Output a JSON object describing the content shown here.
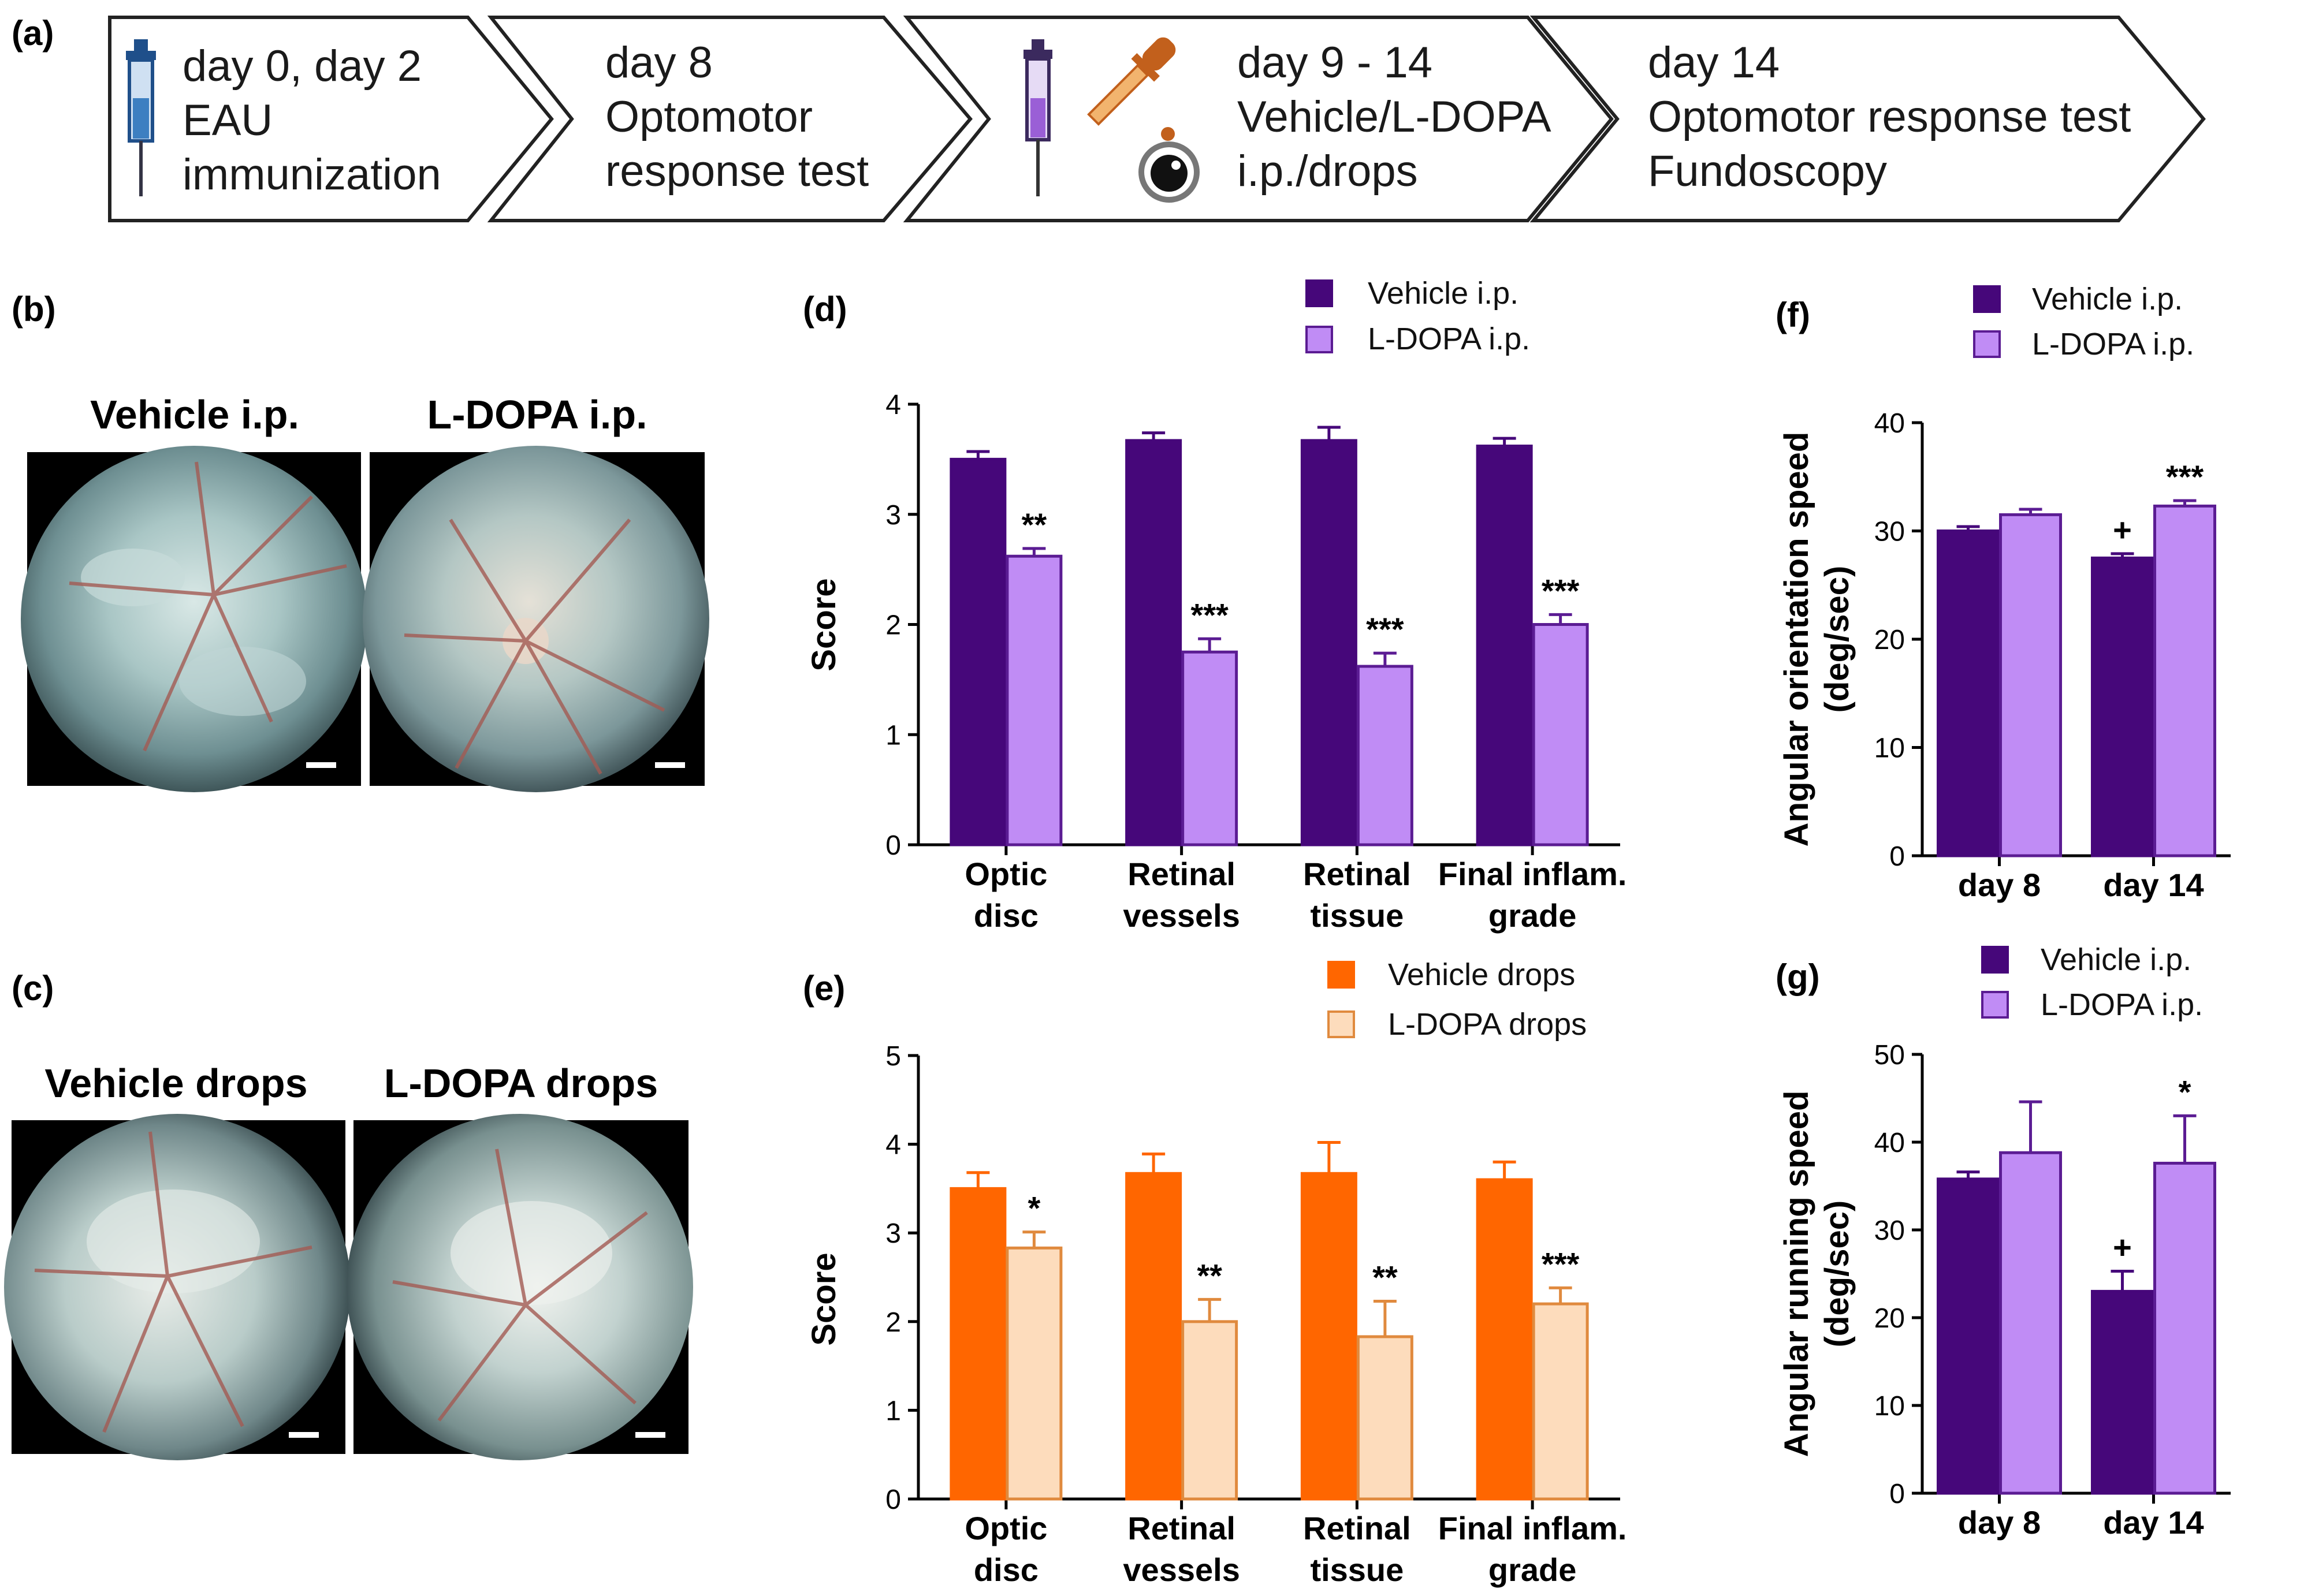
{
  "colors": {
    "vehicle_ip": "#46077a",
    "ldopa_ip_fill": "#c08cf5",
    "ldopa_ip_edge": "#5b1c93",
    "vehicle_drops": "#ff6600",
    "ldopa_drops_fill": "#fddcbc",
    "ldopa_drops_edge": "#e08a3e"
  },
  "panel_a": {
    "label": "(a)",
    "steps": [
      {
        "lines": [
          "day 0, day 2",
          "EAU",
          "immunization"
        ],
        "icon": "syringe-icon"
      },
      {
        "lines": [
          "day 8",
          "Optomotor",
          "response test"
        ],
        "icon": ""
      },
      {
        "lines": [
          "day 9 - 14",
          "Vehicle/L-DOPA",
          "i.p./drops"
        ],
        "icon": "syringe-dropper-icon"
      },
      {
        "lines": [
          "day 14",
          "Optomotor response test",
          "Fundoscopy"
        ],
        "icon": ""
      }
    ]
  },
  "panel_b": {
    "label": "(b)",
    "left_title": "Vehicle i.p.",
    "right_title": "L-DOPA i.p."
  },
  "panel_c": {
    "label": "(c)",
    "left_title": "Vehicle drops",
    "right_title": "L-DOPA drops"
  },
  "chart_data": [
    {
      "id": "d",
      "panel_label": "(d)",
      "type": "bar",
      "title": "",
      "xlabel": "",
      "ylabel": "Score",
      "ylim": [
        0,
        4
      ],
      "yticks": [
        0,
        1,
        2,
        3,
        4
      ],
      "categories": [
        [
          "Optic",
          "disc"
        ],
        [
          "Retinal",
          "vessels"
        ],
        [
          "Retinal",
          "tissue"
        ],
        [
          "Final inflam.",
          "grade"
        ]
      ],
      "series": [
        {
          "name": "Vehicle i.p.",
          "values": [
            3.5,
            3.67,
            3.67,
            3.62
          ],
          "errors": [
            0.07,
            0.07,
            0.12,
            0.07
          ],
          "fill": "#46077a",
          "edge": "#46077a"
        },
        {
          "name": "L-DOPA i.p.",
          "values": [
            2.62,
            1.75,
            1.62,
            2.0
          ],
          "errors": [
            0.07,
            0.12,
            0.12,
            0.09
          ],
          "fill": "#c08cf5",
          "edge": "#5b1c93"
        }
      ],
      "annotations": [
        {
          "category": 0,
          "series": 1,
          "text": "**",
          "kind": "star"
        },
        {
          "category": 1,
          "series": 1,
          "text": "***",
          "kind": "star"
        },
        {
          "category": 2,
          "series": 1,
          "text": "***",
          "kind": "star"
        },
        {
          "category": 3,
          "series": 1,
          "text": "***",
          "kind": "star"
        }
      ],
      "legend_position": "top"
    },
    {
      "id": "e",
      "panel_label": "(e)",
      "type": "bar",
      "title": "",
      "xlabel": "",
      "ylabel": "Score",
      "ylim": [
        0,
        5
      ],
      "yticks": [
        0,
        1,
        2,
        3,
        4,
        5
      ],
      "categories": [
        [
          "Optic",
          "disc"
        ],
        [
          "Retinal",
          "vessels"
        ],
        [
          "Retinal",
          "tissue"
        ],
        [
          "Final inflam.",
          "grade"
        ]
      ],
      "series": [
        {
          "name": "Vehicle drops",
          "values": [
            3.5,
            3.67,
            3.67,
            3.6
          ],
          "errors": [
            0.18,
            0.22,
            0.35,
            0.2
          ],
          "fill": "#ff6600",
          "edge": "#ff6600"
        },
        {
          "name": "L-DOPA drops",
          "values": [
            2.83,
            2.0,
            1.83,
            2.2
          ],
          "errors": [
            0.18,
            0.25,
            0.4,
            0.18
          ],
          "fill": "#fddcbc",
          "edge": "#e08a3e"
        }
      ],
      "annotations": [
        {
          "category": 0,
          "series": 1,
          "text": "*",
          "kind": "star"
        },
        {
          "category": 1,
          "series": 1,
          "text": "**",
          "kind": "star"
        },
        {
          "category": 2,
          "series": 1,
          "text": "**",
          "kind": "star"
        },
        {
          "category": 3,
          "series": 1,
          "text": "***",
          "kind": "star"
        }
      ],
      "legend_position": "top"
    },
    {
      "id": "f",
      "panel_label": "(f)",
      "type": "bar",
      "title": "",
      "xlabel": "",
      "ylabel": [
        "Angular orientation speed",
        "(deg/sec)"
      ],
      "ylim": [
        0,
        40
      ],
      "yticks": [
        0,
        10,
        20,
        30,
        40
      ],
      "categories": [
        [
          "day 8"
        ],
        [
          "day 14"
        ]
      ],
      "series": [
        {
          "name": "Vehicle i.p.",
          "values": [
            30.0,
            27.5
          ],
          "errors": [
            0.4,
            0.4
          ],
          "fill": "#46077a",
          "edge": "#46077a"
        },
        {
          "name": "L-DOPA i.p.",
          "values": [
            31.5,
            32.3
          ],
          "errors": [
            0.5,
            0.5
          ],
          "fill": "#c08cf5",
          "edge": "#5b1c93"
        }
      ],
      "annotations": [
        {
          "category": 1,
          "series": 0,
          "text": "+",
          "kind": "plus"
        },
        {
          "category": 1,
          "series": 1,
          "text": "***",
          "kind": "star"
        }
      ],
      "legend_position": "top"
    },
    {
      "id": "g",
      "panel_label": "(g)",
      "type": "bar",
      "title": "",
      "xlabel": "",
      "ylabel": [
        "Angular running speed",
        "(deg/sec)"
      ],
      "ylim": [
        0,
        50
      ],
      "yticks": [
        0,
        10,
        20,
        30,
        40,
        50
      ],
      "categories": [
        [
          "day 8"
        ],
        [
          "day 14"
        ]
      ],
      "series": [
        {
          "name": "Vehicle i.p.",
          "values": [
            35.8,
            23.0
          ],
          "errors": [
            0.8,
            2.3
          ],
          "fill": "#46077a",
          "edge": "#46077a"
        },
        {
          "name": "L-DOPA i.p.",
          "values": [
            38.8,
            37.6
          ],
          "errors": [
            5.8,
            5.4
          ],
          "fill": "#c08cf5",
          "edge": "#5b1c93"
        }
      ],
      "annotations": [
        {
          "category": 1,
          "series": 0,
          "text": "+",
          "kind": "plus"
        },
        {
          "category": 1,
          "series": 1,
          "text": "*",
          "kind": "star"
        }
      ],
      "legend_position": "top"
    }
  ]
}
